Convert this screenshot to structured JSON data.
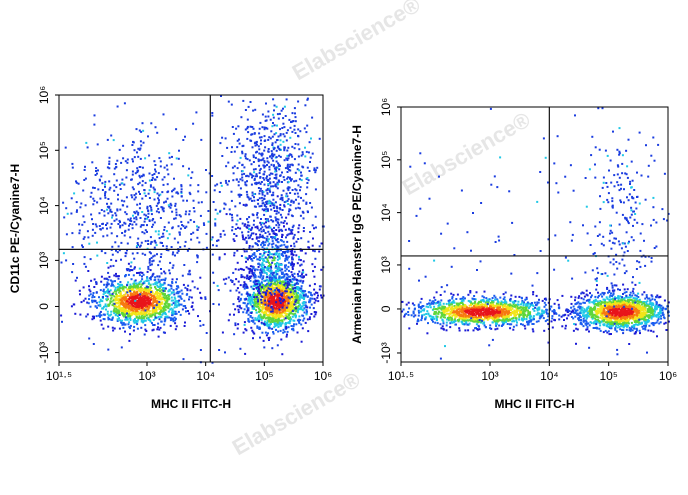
{
  "chart_data": [
    {
      "type": "scatter",
      "xlabel": "MHC II FITC-H",
      "ylabel": "CD11c PE-/Cyanine7-H",
      "xscale": "log",
      "yscale": "asinh",
      "xlim": [
        31.6228,
        1000000
      ],
      "xticks": [
        {
          "value": 31.6228,
          "label": "10¹·⁵"
        },
        {
          "value": 1000,
          "label": "10³"
        },
        {
          "value": 10000,
          "label": "10⁴"
        },
        {
          "value": 100000,
          "label": "10⁵"
        },
        {
          "value": 1000000,
          "label": "10⁶"
        }
      ],
      "ylim": [
        -1500,
        1000000
      ],
      "yticks": [
        {
          "value": -1000,
          "label": "-10³"
        },
        0,
        {
          "value": 1000,
          "label": "10³"
        },
        {
          "value": 10000,
          "label": "10⁴"
        },
        {
          "value": 100000,
          "label": "10⁵"
        },
        {
          "value": 1000000,
          "label": "10⁶"
        }
      ],
      "gates": {
        "x": 12000,
        "y": 1600
      }
    },
    {
      "type": "scatter",
      "xlabel": "MHC II FITC-H",
      "ylabel": "Armenian Hamster IgG PE/Cyanine7-H",
      "xscale": "log",
      "yscale": "asinh",
      "xlim": [
        31.6228,
        1000000
      ],
      "xticks": [
        {
          "value": 31.6228,
          "label": "10¹·⁵"
        },
        {
          "value": 1000,
          "label": "10³"
        },
        {
          "value": 10000,
          "label": "10⁴"
        },
        {
          "value": 100000,
          "label": "10⁵"
        },
        {
          "value": 1000000,
          "label": "10⁶"
        }
      ],
      "ylim": [
        -1500,
        1000000
      ],
      "yticks": [
        {
          "value": -1000,
          "label": "-10³"
        },
        0,
        {
          "value": 1000,
          "label": "10³"
        },
        {
          "value": 10000,
          "label": "10⁴"
        },
        {
          "value": 100000,
          "label": "10⁵"
        },
        {
          "value": 1000000,
          "label": "10⁶"
        }
      ],
      "gates": {
        "x": 10000,
        "y": 1500
      }
    }
  ],
  "watermark": "Elabscience®"
}
